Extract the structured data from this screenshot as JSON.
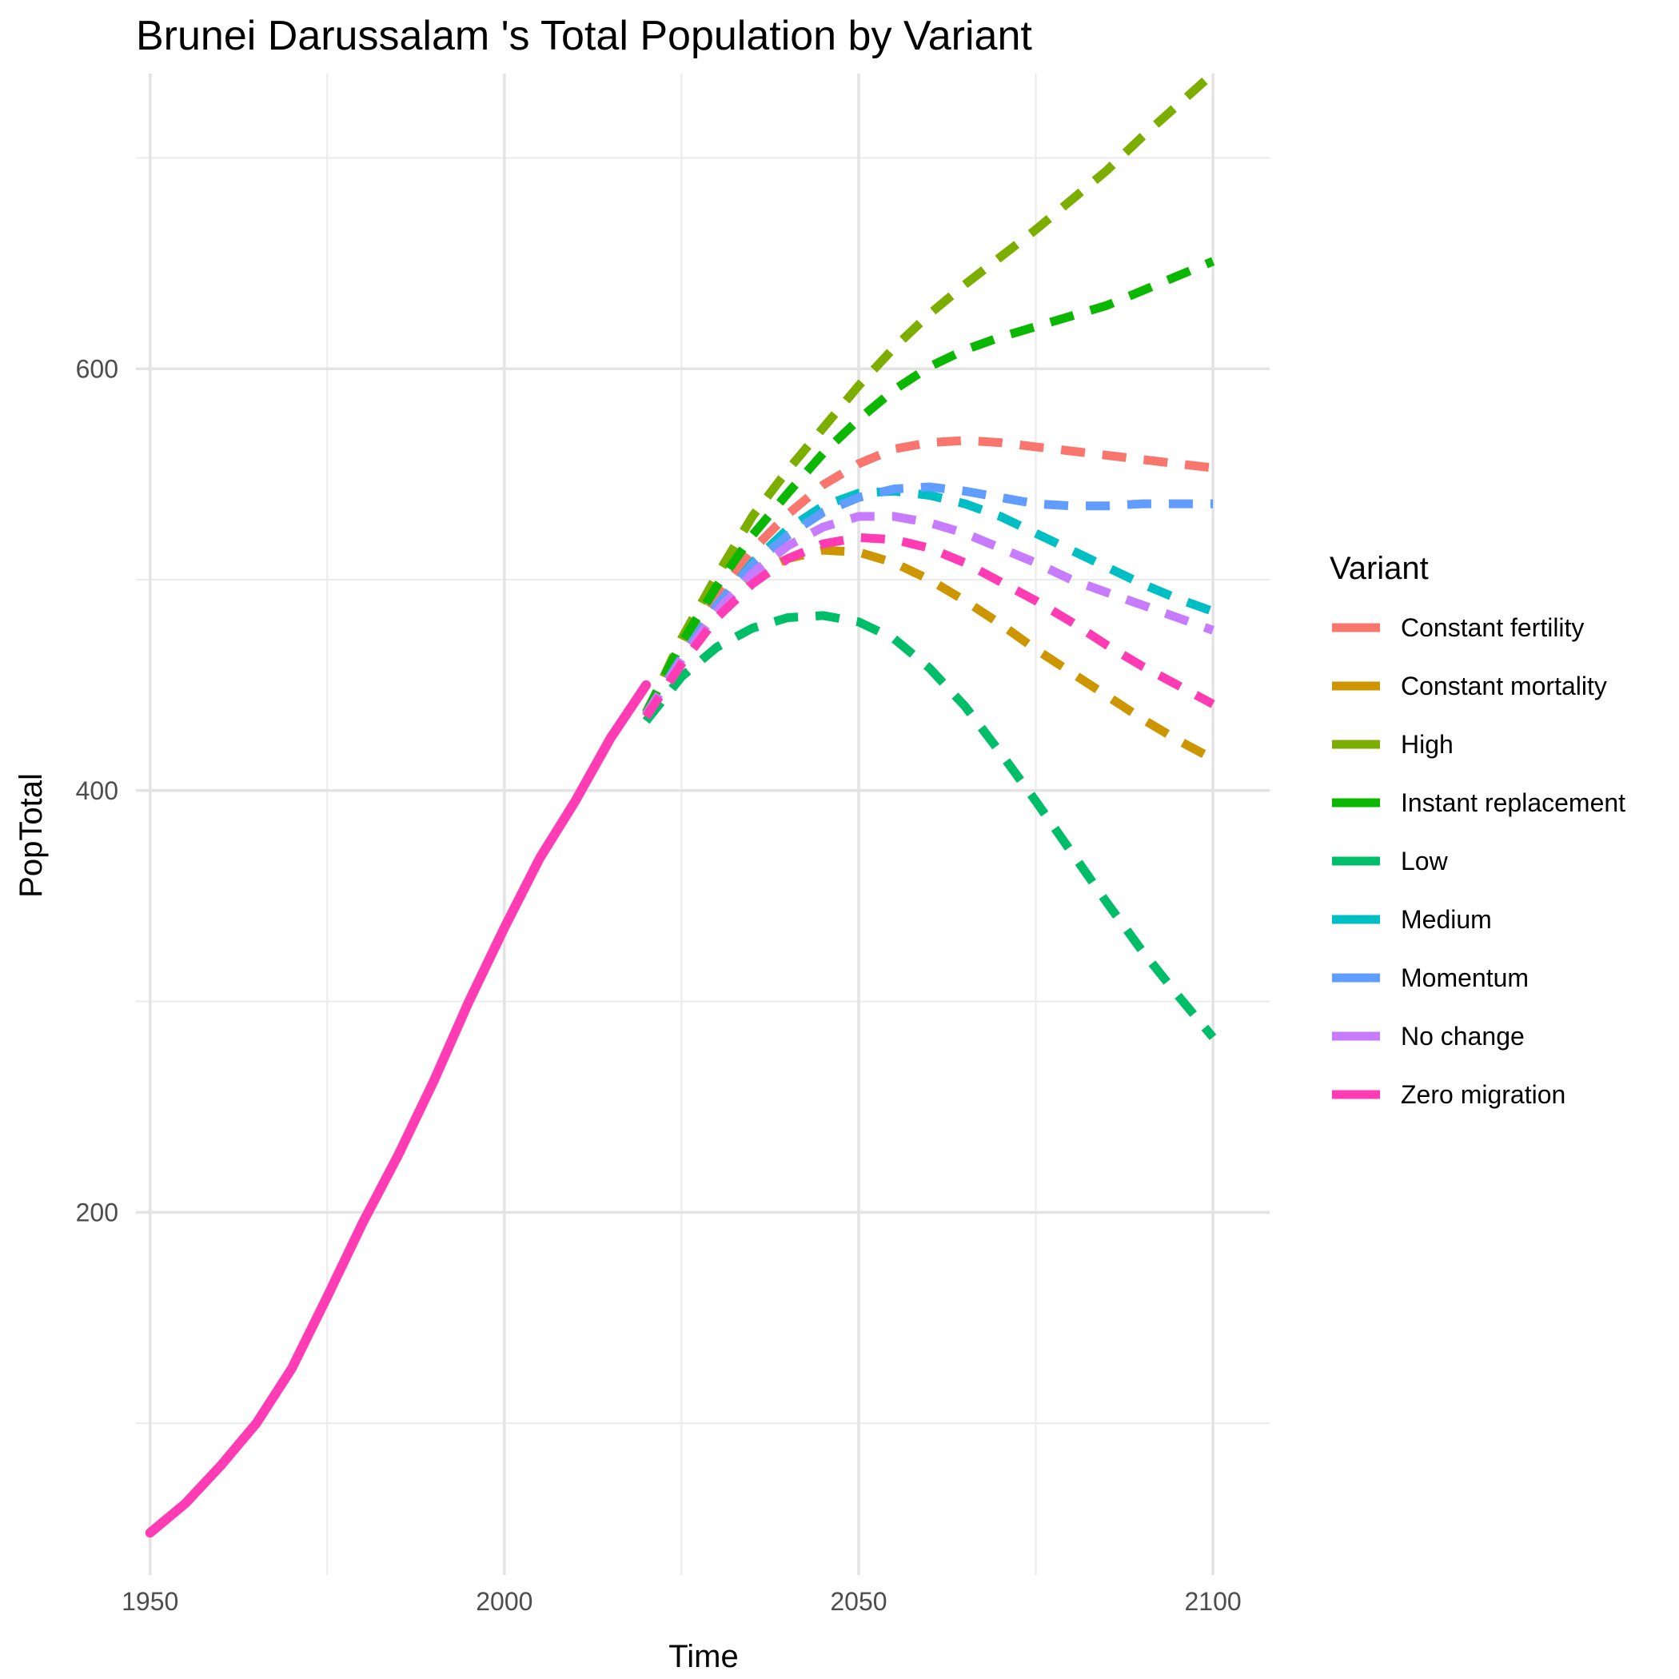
{
  "chart_data": {
    "type": "line",
    "title": "Brunei Darussalam 's Total Population by Variant",
    "xlabel": "Time",
    "ylabel": "PopTotal",
    "xlim": [
      1948,
      2108
    ],
    "ylim": [
      28,
      740
    ],
    "x_ticks": [
      1950,
      2000,
      2050,
      2100
    ],
    "x_minor_ticks": [
      1975,
      2025,
      2075
    ],
    "y_ticks": [
      200,
      400,
      600
    ],
    "y_minor_ticks": [
      100,
      300,
      500,
      700
    ],
    "grid": true,
    "legend": {
      "title": "Variant",
      "position": "right"
    },
    "history": {
      "name": "Zero migration",
      "color": "#FF3CB4",
      "x": [
        1950,
        1955,
        1960,
        1965,
        1970,
        1975,
        1980,
        1985,
        1990,
        1995,
        2000,
        2005,
        2010,
        2015,
        2020
      ],
      "values": [
        48,
        62,
        80,
        100,
        126,
        160,
        195,
        227,
        262,
        300,
        335,
        368,
        395,
        425,
        450
      ]
    },
    "series": [
      {
        "name": "Constant fertility",
        "color": "#F8766D",
        "x": [
          2020,
          2025,
          2030,
          2035,
          2040,
          2045,
          2050,
          2055,
          2060,
          2065,
          2070,
          2075,
          2080,
          2085,
          2090,
          2095,
          2100
        ],
        "values": [
          436,
          467,
          492,
          514,
          531,
          545,
          555,
          562,
          565,
          566,
          565,
          563,
          561,
          559,
          557,
          555,
          553
        ]
      },
      {
        "name": "Constant mortality",
        "color": "#CD9600",
        "x": [
          2020,
          2025,
          2030,
          2035,
          2040,
          2045,
          2050,
          2055,
          2060,
          2065,
          2070,
          2075,
          2080,
          2085,
          2090,
          2095,
          2100
        ],
        "values": [
          436,
          465,
          487,
          502,
          510,
          514,
          513,
          508,
          500,
          490,
          479,
          467,
          456,
          445,
          434,
          424,
          415
        ]
      },
      {
        "name": "High",
        "color": "#7CAE00",
        "x": [
          2020,
          2025,
          2030,
          2035,
          2040,
          2045,
          2050,
          2055,
          2060,
          2065,
          2070,
          2075,
          2080,
          2085,
          2090,
          2095,
          2100
        ],
        "values": [
          436,
          472,
          502,
          530,
          552,
          572,
          592,
          610,
          626,
          640,
          653,
          666,
          680,
          694,
          710,
          725,
          740
        ]
      },
      {
        "name": "Instant replacement",
        "color": "#0CB702",
        "x": [
          2020,
          2025,
          2030,
          2035,
          2040,
          2045,
          2050,
          2055,
          2060,
          2065,
          2070,
          2075,
          2080,
          2085,
          2090,
          2095,
          2100
        ],
        "values": [
          437,
          470,
          497,
          521,
          541,
          560,
          576,
          590,
          601,
          609,
          615,
          620,
          625,
          630,
          637,
          644,
          651
        ]
      },
      {
        "name": "Low",
        "color": "#00BE67",
        "x": [
          2020,
          2025,
          2030,
          2035,
          2040,
          2045,
          2050,
          2055,
          2060,
          2065,
          2070,
          2075,
          2080,
          2085,
          2090,
          2095,
          2100
        ],
        "values": [
          433,
          454,
          468,
          477,
          482,
          483,
          480,
          472,
          458,
          440,
          418,
          395,
          371,
          347,
          324,
          303,
          283
        ]
      },
      {
        "name": "Medium",
        "color": "#00BFC4",
        "x": [
          2020,
          2025,
          2030,
          2035,
          2040,
          2045,
          2050,
          2055,
          2060,
          2065,
          2070,
          2075,
          2080,
          2085,
          2090,
          2095,
          2100
        ],
        "values": [
          436,
          463,
          487,
          508,
          524,
          535,
          541,
          542,
          540,
          536,
          530,
          522,
          514,
          506,
          498,
          491,
          485
        ]
      },
      {
        "name": "Momentum",
        "color": "#619CFF",
        "x": [
          2020,
          2025,
          2030,
          2035,
          2040,
          2045,
          2050,
          2055,
          2060,
          2065,
          2070,
          2075,
          2080,
          2085,
          2090,
          2095,
          2100
        ],
        "values": [
          436,
          463,
          488,
          507,
          521,
          532,
          539,
          543,
          544,
          542,
          539,
          536,
          535,
          535,
          536,
          536,
          536
        ]
      },
      {
        "name": "No change",
        "color": "#C77CFF",
        "x": [
          2020,
          2025,
          2030,
          2035,
          2040,
          2045,
          2050,
          2055,
          2060,
          2065,
          2070,
          2075,
          2080,
          2085,
          2090,
          2095,
          2100
        ],
        "values": [
          436,
          462,
          485,
          503,
          516,
          525,
          530,
          530,
          527,
          522,
          515,
          508,
          500,
          494,
          488,
          482,
          476
        ]
      },
      {
        "name": "Zero migration",
        "color": "#FF3CB4",
        "x": [
          2020,
          2025,
          2030,
          2035,
          2040,
          2045,
          2050,
          2055,
          2060,
          2065,
          2070,
          2075,
          2080,
          2085,
          2090,
          2095,
          2100
        ],
        "values": [
          435,
          460,
          482,
          498,
          510,
          517,
          520,
          519,
          515,
          508,
          499,
          490,
          480,
          469,
          459,
          450,
          441
        ]
      }
    ]
  }
}
